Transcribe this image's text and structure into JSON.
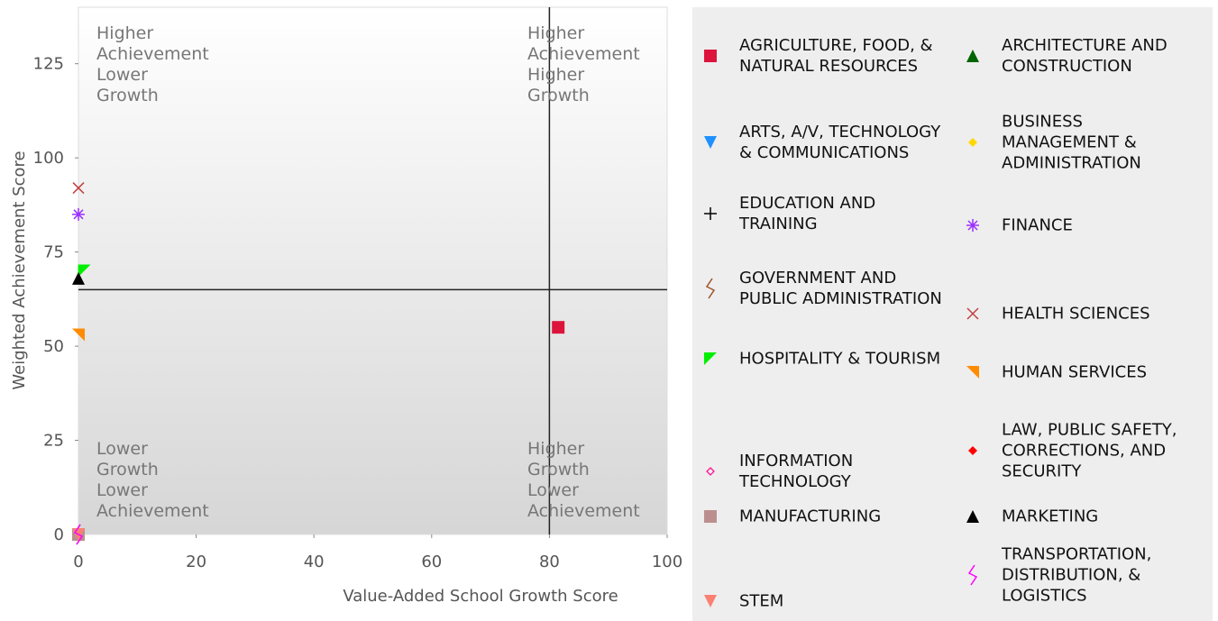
{
  "chart_data": {
    "type": "scatter",
    "x_label": "Value-Added School Growth Score",
    "y_label": "Weighted Achievement Score",
    "xlim": [
      0,
      100
    ],
    "xticks": [
      0,
      20,
      40,
      60,
      80,
      100
    ],
    "ylim": [
      0,
      140
    ],
    "yticks": [
      0,
      25,
      50,
      75,
      100,
      125
    ],
    "quadrant_lines": {
      "x": 80,
      "y": 65
    },
    "quadrant_labels": [
      "Higher Achievement Lower Growth",
      "Higher Achievement Higher Growth",
      "Lower Growth Lower Achievement",
      "Higher Growth Lower Achievement"
    ],
    "series": [
      {
        "name": "AGRICULTURE, FOOD, & NATURAL RESOURCES",
        "color": "#dc143c",
        "marker": "square",
        "x": [
          81.5
        ],
        "values": [
          55
        ]
      },
      {
        "name": "ARCHITECTURE AND CONSTRUCTION",
        "color": "#006400",
        "marker": "triangle-up",
        "x": [
          0
        ],
        "values": [
          0
        ]
      },
      {
        "name": "ARTS, A/V, TECHNOLOGY & COMMUNICATIONS",
        "color": "#1e90ff",
        "marker": "triangle-down",
        "x": [
          0
        ],
        "values": [
          0
        ]
      },
      {
        "name": "BUSINESS MANAGEMENT & ADMINISTRATION",
        "color": "#ffd700",
        "marker": "diamond",
        "x": [
          0
        ],
        "values": [
          0
        ]
      },
      {
        "name": "EDUCATION AND TRAINING",
        "color": "#000000",
        "marker": "plus",
        "x": [
          0
        ],
        "values": [
          0
        ]
      },
      {
        "name": "FINANCE",
        "color": "#9b30ff",
        "marker": "asterisk",
        "x": [
          0
        ],
        "values": [
          85
        ]
      },
      {
        "name": "GOVERNMENT AND PUBLIC ADMINISTRATION",
        "color": "#a0522d",
        "marker": "zigzag",
        "x": [
          0
        ],
        "values": [
          0
        ]
      },
      {
        "name": "HEALTH SCIENCES",
        "color": "#c04040",
        "marker": "cross",
        "x": [
          0
        ],
        "values": [
          92
        ]
      },
      {
        "name": "HOSPITALITY & TOURISM",
        "color": "#00ee00",
        "marker": "flag",
        "x": [
          1
        ],
        "values": [
          70
        ]
      },
      {
        "name": "HUMAN SERVICES",
        "color": "#ff8c00",
        "marker": "corner",
        "x": [
          0
        ],
        "values": [
          53
        ]
      },
      {
        "name": "INFORMATION TECHNOLOGY",
        "color": "#ff1493",
        "marker": "hollow-diamond",
        "x": [
          0
        ],
        "values": [
          0
        ]
      },
      {
        "name": "LAW, PUBLIC SAFETY, CORRECTIONS, AND SECURITY",
        "color": "#ff0000",
        "marker": "diamond",
        "x": [
          0
        ],
        "values": [
          0
        ]
      },
      {
        "name": "MANUFACTURING",
        "color": "#bc8f8f",
        "marker": "square",
        "x": [
          0
        ],
        "values": [
          0
        ]
      },
      {
        "name": "MARKETING",
        "color": "#000000",
        "marker": "triangle-up",
        "x": [
          0
        ],
        "values": [
          68
        ]
      },
      {
        "name": "STEM",
        "color": "#fa8072",
        "marker": "triangle-down",
        "x": [
          0
        ],
        "values": [
          0
        ]
      },
      {
        "name": "TRANSPORTATION, DISTRIBUTION, & LOGISTICS",
        "color": "#ff00ff",
        "marker": "zigzag",
        "x": [
          0
        ],
        "values": [
          0
        ]
      }
    ]
  }
}
